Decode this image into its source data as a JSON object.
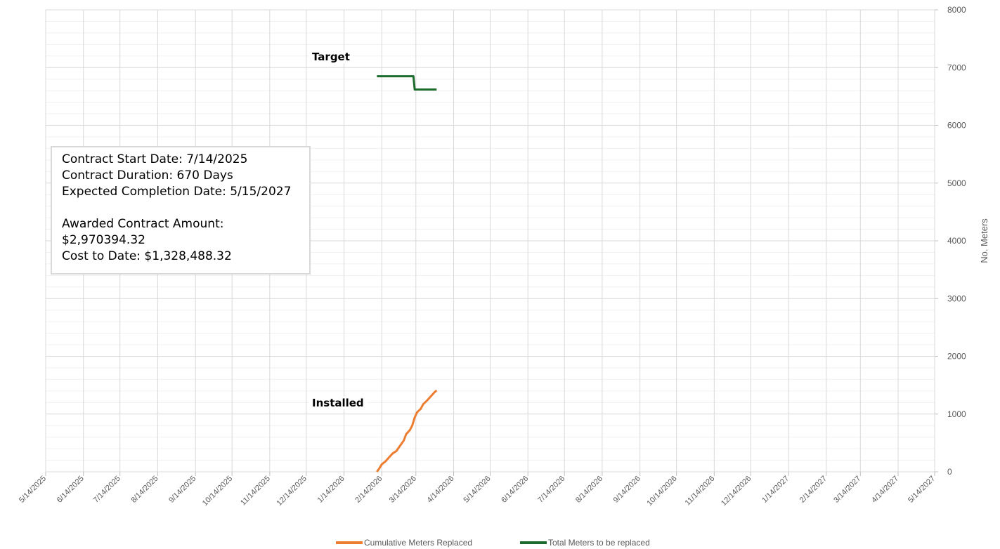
{
  "annotations": {
    "target_label": "Target",
    "installed_label": "Installed"
  },
  "info_box": {
    "start": "Contract Start Date:  7/14/2025",
    "duration": "Contract Duration: 670 Days",
    "completion": "Expected Completion Date:  5/15/2027",
    "awarded_label": "Awarded Contract Amount:",
    "awarded_value": "$2,970394.32",
    "cost": "Cost to Date: $1,328,488.32"
  },
  "chart_data": {
    "type": "line",
    "title": "",
    "ylabel": "No. Meters",
    "ylim": [
      0,
      8000
    ],
    "y_ticks": [
      0,
      1000,
      2000,
      3000,
      4000,
      5000,
      6000,
      7000,
      8000
    ],
    "y_axis_side": "right",
    "xlim": [
      "2025-05-14",
      "2027-05-14"
    ],
    "x_tick_labels": [
      "5/14/2025",
      "6/14/2025",
      "7/14/2025",
      "8/14/2025",
      "9/14/2025",
      "10/14/2025",
      "11/14/2025",
      "12/14/2025",
      "1/14/2026",
      "2/14/2026",
      "3/14/2026",
      "4/14/2026",
      "5/14/2026",
      "6/14/2026",
      "7/14/2026",
      "8/14/2026",
      "9/14/2026",
      "10/14/2026",
      "11/14/2026",
      "12/14/2026",
      "1/14/2027",
      "2/14/2027",
      "3/14/2027",
      "4/14/2027",
      "5/14/2027"
    ],
    "grid": true,
    "legend_position": "bottom",
    "series": [
      {
        "name": "Cumulative Meters Replaced",
        "color": "#ed7d31",
        "points": [
          [
            "2026-02-10",
            0
          ],
          [
            "2026-02-12",
            60
          ],
          [
            "2026-02-14",
            130
          ],
          [
            "2026-02-17",
            180
          ],
          [
            "2026-02-20",
            250
          ],
          [
            "2026-02-23",
            320
          ],
          [
            "2026-02-26",
            360
          ],
          [
            "2026-02-28",
            420
          ],
          [
            "2026-03-02",
            480
          ],
          [
            "2026-03-04",
            540
          ],
          [
            "2026-03-06",
            650
          ],
          [
            "2026-03-09",
            720
          ],
          [
            "2026-03-11",
            800
          ],
          [
            "2026-03-13",
            940
          ],
          [
            "2026-03-15",
            1030
          ],
          [
            "2026-03-18",
            1090
          ],
          [
            "2026-03-20",
            1170
          ],
          [
            "2026-03-23",
            1230
          ],
          [
            "2026-03-26",
            1300
          ],
          [
            "2026-03-29",
            1370
          ],
          [
            "2026-03-31",
            1410
          ]
        ]
      },
      {
        "name": "Total Meters to be replaced",
        "color": "#1e6b2e",
        "points": [
          [
            "2026-02-10",
            6850
          ],
          [
            "2026-03-12",
            6850
          ],
          [
            "2026-03-13",
            6620
          ],
          [
            "2026-03-31",
            6620
          ]
        ]
      }
    ]
  }
}
